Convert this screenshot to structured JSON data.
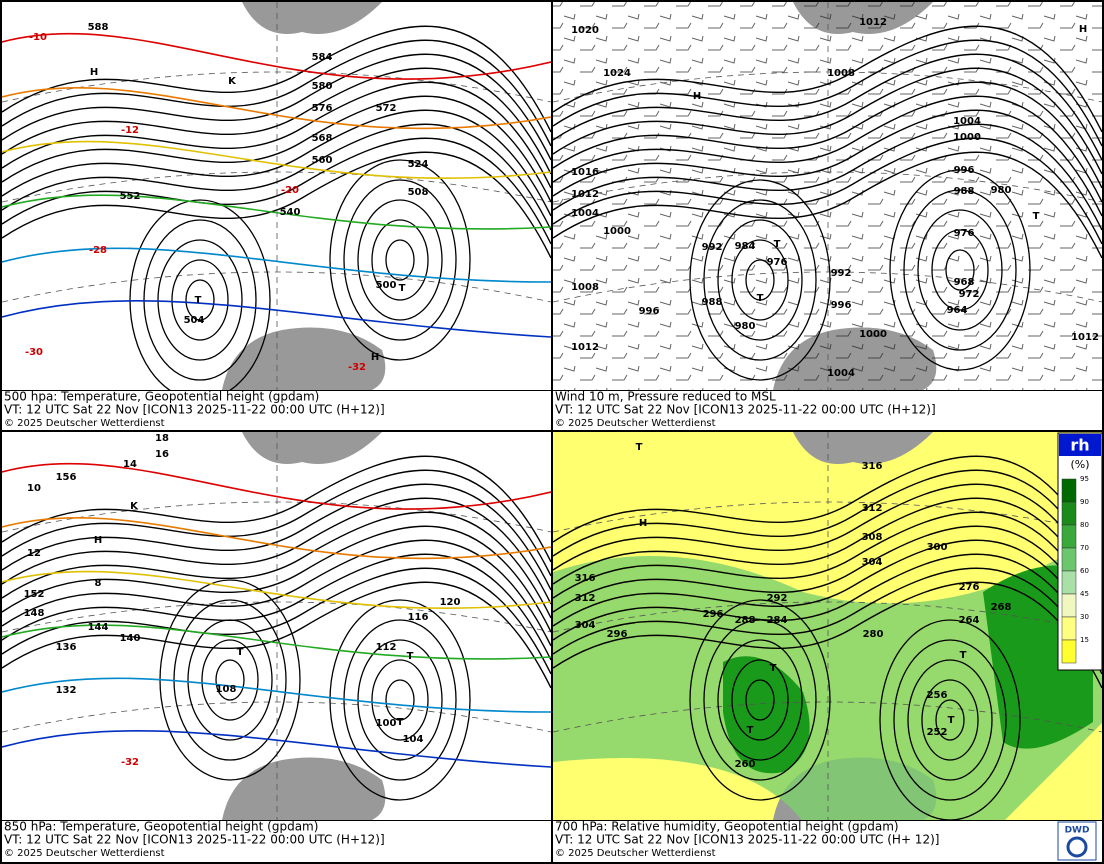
{
  "panels": [
    {
      "caption": [
        "500 hpa: Temperature, Geopotential height (gpdam)",
        "VT: 12 UTC Sat  22 Nov [ICON13 2025-11-22 00:00 UTC  (H+12)]",
        "© 2025 Deutscher Wetterdienst"
      ],
      "labels": [
        "588",
        "584",
        "580",
        "576",
        "572",
        "568",
        "560",
        "552",
        "540",
        "524",
        "508",
        "504",
        "500",
        "T",
        "T",
        "H",
        "H",
        "K",
        "-10",
        "-12",
        "-20",
        "-28",
        "-30",
        "-32"
      ]
    },
    {
      "caption": [
        "Wind 10 m, Pressure reduced to MSL",
        "VT: 12 UTC Sat  22 Nov [ICON13 2025-11-22 00:00 UTC  (H+12)]",
        "© 2025 Deutscher Wetterdienst"
      ],
      "labels": [
        "1020",
        "1024",
        "H",
        "1016",
        "1012",
        "1004",
        "1000",
        "1008",
        "996",
        "1012",
        "992",
        "988",
        "984",
        "976",
        "980",
        "T",
        "T",
        "992",
        "996",
        "1000",
        "1004",
        "1004",
        "1000",
        "996",
        "988",
        "980",
        "976",
        "968",
        "964",
        "972",
        "T",
        "1012",
        "1008",
        "1012",
        "H"
      ]
    },
    {
      "caption": [
        "850 hPa:  Temperature, Geopotential height (gpdam)",
        "VT: 12 UTC Sat  22 Nov [ICON13 2025-11-22 00:00 UTC  (H+12)]",
        "© 2025 Deutscher Wetterdienst"
      ],
      "labels": [
        "18",
        "16",
        "14",
        "10",
        "156",
        "152",
        "148",
        "144",
        "140",
        "136",
        "132",
        "108",
        "104",
        "100",
        "120",
        "116",
        "112",
        "T",
        "T",
        "T",
        "H",
        "K",
        "-32",
        "12",
        "8"
      ]
    },
    {
      "caption": [
        "700 hPa:  Relative humidity, Geopotential height (gpdam)",
        "VT: 12 UTC Sat  22 Nov [ICON13  2025-11-22 00:00 UTC  (H+ 12)]",
        "© 2025 Deutscher Wetterdienst"
      ],
      "labels": [
        "316",
        "312",
        "308",
        "304",
        "300",
        "296",
        "292",
        "288",
        "284",
        "280",
        "276",
        "268",
        "264",
        "260",
        "256",
        "252",
        "T",
        "T",
        "T",
        "T",
        "H",
        "T",
        "316",
        "312",
        "304",
        "296"
      ]
    }
  ],
  "legend": {
    "title": "rh",
    "unit": "(%)",
    "ticks": [
      "95",
      "90",
      "80",
      "70",
      "60",
      "45",
      "30",
      "15"
    ]
  },
  "logo": "DWD"
}
